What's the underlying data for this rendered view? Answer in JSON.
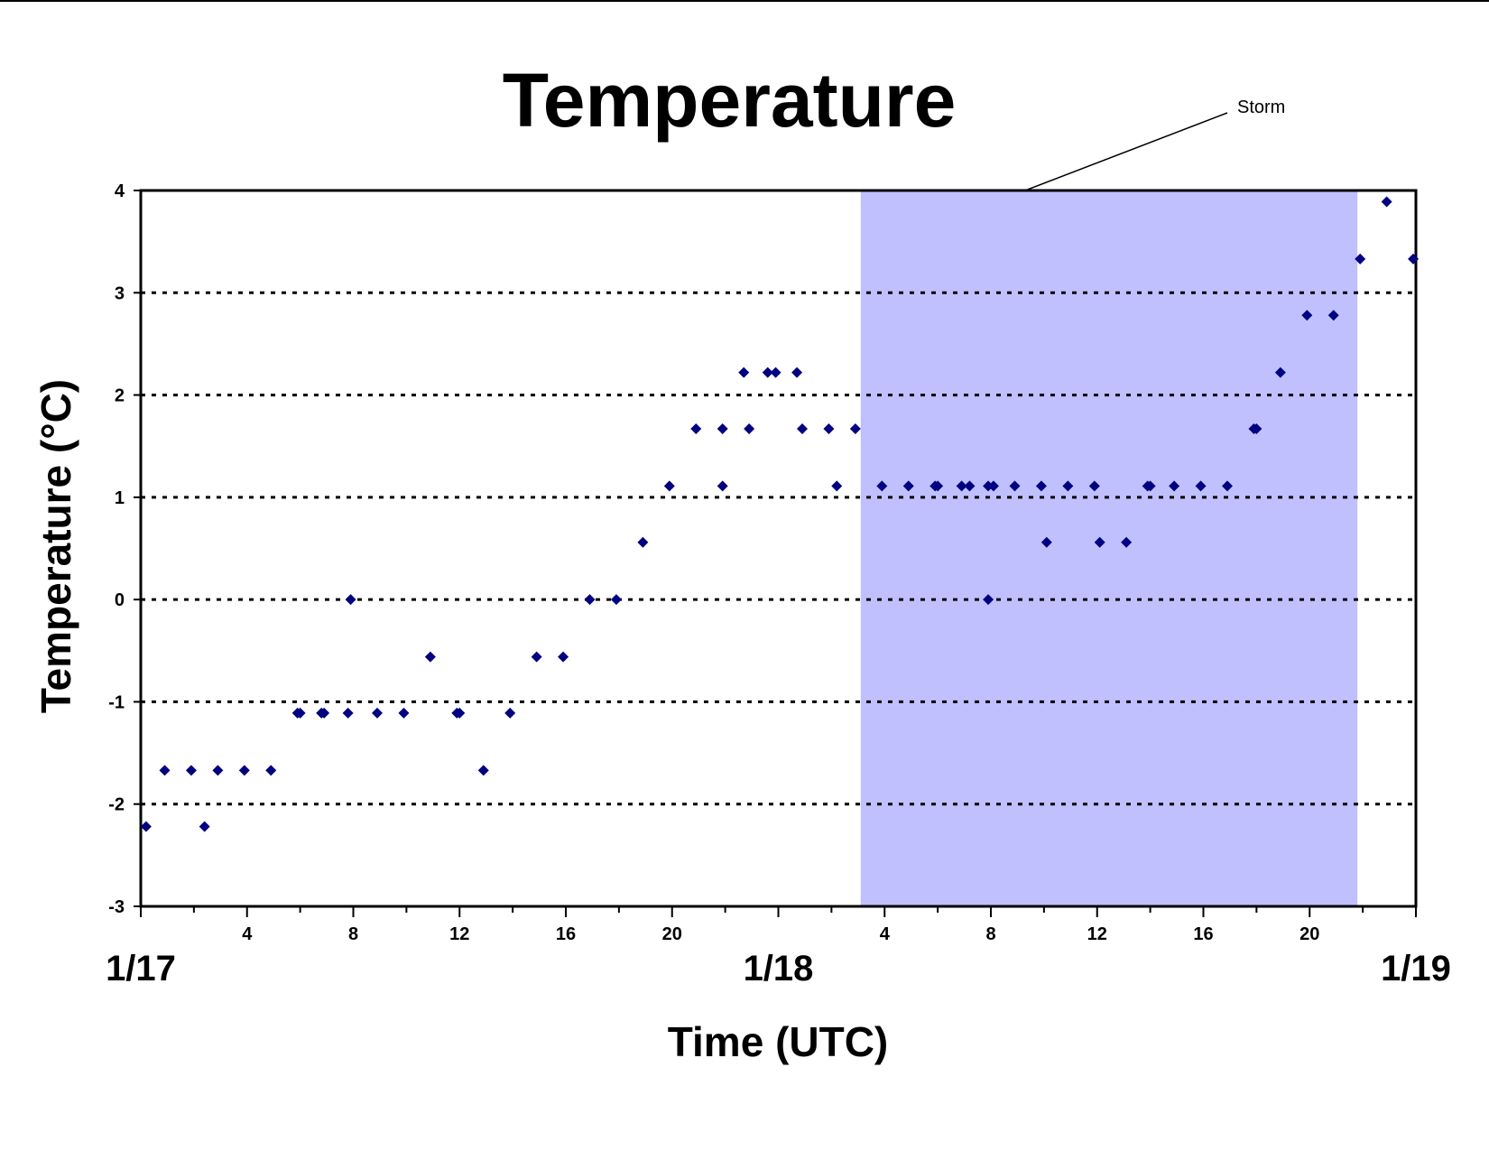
{
  "chart_data": {
    "type": "scatter",
    "title": "Temperature",
    "xlabel": "Time (UTC)",
    "ylabel": "Temperature (°C)",
    "ylim": [
      -3,
      4
    ],
    "yticks": [
      -3,
      -2,
      -1,
      0,
      1,
      2,
      3,
      4
    ],
    "xlim_hours": [
      0,
      48
    ],
    "x_unit": "hours since 1/17 00 UTC",
    "hour_tick_labels": [
      {
        "hour": 4,
        "label": "4"
      },
      {
        "hour": 8,
        "label": "8"
      },
      {
        "hour": 12,
        "label": "12"
      },
      {
        "hour": 16,
        "label": "16"
      },
      {
        "hour": 20,
        "label": "20"
      },
      {
        "hour": 28,
        "label": "4"
      },
      {
        "hour": 32,
        "label": "8"
      },
      {
        "hour": 36,
        "label": "12"
      },
      {
        "hour": 40,
        "label": "16"
      },
      {
        "hour": 44,
        "label": "20"
      }
    ],
    "date_labels": [
      {
        "hour": 0,
        "label": "1/17"
      },
      {
        "hour": 24,
        "label": "1/18"
      },
      {
        "hour": 48,
        "label": "1/19"
      }
    ],
    "grid": "horizontal dotted",
    "marker_color": "#000080",
    "storm_color": "#c0c0ff",
    "annotation": {
      "text": "Storm",
      "shaded_span_hours": [
        27.1,
        45.8
      ]
    },
    "points": [
      [
        0.2,
        -2.22
      ],
      [
        0.9,
        -1.67
      ],
      [
        1.9,
        -1.67
      ],
      [
        2.4,
        -2.22
      ],
      [
        2.9,
        -1.67
      ],
      [
        3.9,
        -1.67
      ],
      [
        4.9,
        -1.67
      ],
      [
        5.9,
        -1.11
      ],
      [
        6.0,
        -1.11
      ],
      [
        6.8,
        -1.11
      ],
      [
        6.9,
        -1.11
      ],
      [
        7.8,
        -1.11
      ],
      [
        7.9,
        0.0
      ],
      [
        8.9,
        -1.11
      ],
      [
        9.9,
        -1.11
      ],
      [
        10.9,
        -0.56
      ],
      [
        11.9,
        -1.11
      ],
      [
        12.0,
        -1.11
      ],
      [
        12.9,
        -1.67
      ],
      [
        13.9,
        -1.11
      ],
      [
        14.9,
        -0.56
      ],
      [
        15.9,
        -0.56
      ],
      [
        16.9,
        0.0
      ],
      [
        17.9,
        0.0
      ],
      [
        18.9,
        0.56
      ],
      [
        19.9,
        1.11
      ],
      [
        20.9,
        1.67
      ],
      [
        21.9,
        1.11
      ],
      [
        21.9,
        1.67
      ],
      [
        22.9,
        1.67
      ],
      [
        22.7,
        2.22
      ],
      [
        23.6,
        2.22
      ],
      [
        23.9,
        2.22
      ],
      [
        24.7,
        2.22
      ],
      [
        24.9,
        1.67
      ],
      [
        25.9,
        1.67
      ],
      [
        26.2,
        1.11
      ],
      [
        26.9,
        1.67
      ],
      [
        27.9,
        1.11
      ],
      [
        28.9,
        1.11
      ],
      [
        29.9,
        1.11
      ],
      [
        30.0,
        1.11
      ],
      [
        30.9,
        1.11
      ],
      [
        31.2,
        1.11
      ],
      [
        31.9,
        1.11
      ],
      [
        31.9,
        0.0
      ],
      [
        32.1,
        1.11
      ],
      [
        32.9,
        1.11
      ],
      [
        33.9,
        1.11
      ],
      [
        34.1,
        0.56
      ],
      [
        34.9,
        1.11
      ],
      [
        35.9,
        1.11
      ],
      [
        36.1,
        0.56
      ],
      [
        37.1,
        0.56
      ],
      [
        37.9,
        1.11
      ],
      [
        38.0,
        1.11
      ],
      [
        38.9,
        1.11
      ],
      [
        39.9,
        1.11
      ],
      [
        40.9,
        1.11
      ],
      [
        41.9,
        1.67
      ],
      [
        42.0,
        1.67
      ],
      [
        42.9,
        2.22
      ],
      [
        43.9,
        2.78
      ],
      [
        44.9,
        2.78
      ],
      [
        45.9,
        3.33
      ],
      [
        46.9,
        3.89
      ],
      [
        47.9,
        3.33
      ]
    ]
  }
}
